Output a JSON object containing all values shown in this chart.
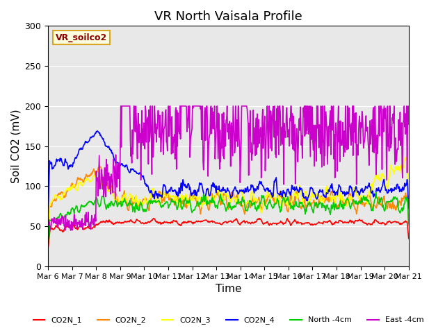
{
  "title": "VR North Vaisala Profile",
  "ylabel": "Soil CO2 (mV)",
  "xlabel": "Time",
  "xlim_days": [
    6,
    21
  ],
  "ylim": [
    0,
    300
  ],
  "yticks": [
    0,
    50,
    100,
    150,
    200,
    250,
    300
  ],
  "xtick_labels": [
    "Mar 6",
    "Mar 7",
    "Mar 8",
    "Mar 9",
    "Mar 10",
    "Mar 11",
    "Mar 12",
    "Mar 13",
    "Mar 14",
    "Mar 15",
    "Mar 16",
    "Mar 17",
    "Mar 18",
    "Mar 19",
    "Mar 20",
    "Mar 21"
  ],
  "legend_label": "VR_soilco2",
  "series_colors": {
    "CO2N_1": "#ff0000",
    "CO2N_2": "#ff8800",
    "CO2N_3": "#ffff00",
    "CO2N_4": "#0000ff",
    "North -4cm": "#00cc00",
    "East -4cm": "#cc00cc"
  },
  "background_color": "#e8e8e8",
  "title_fontsize": 13,
  "label_fontsize": 11
}
